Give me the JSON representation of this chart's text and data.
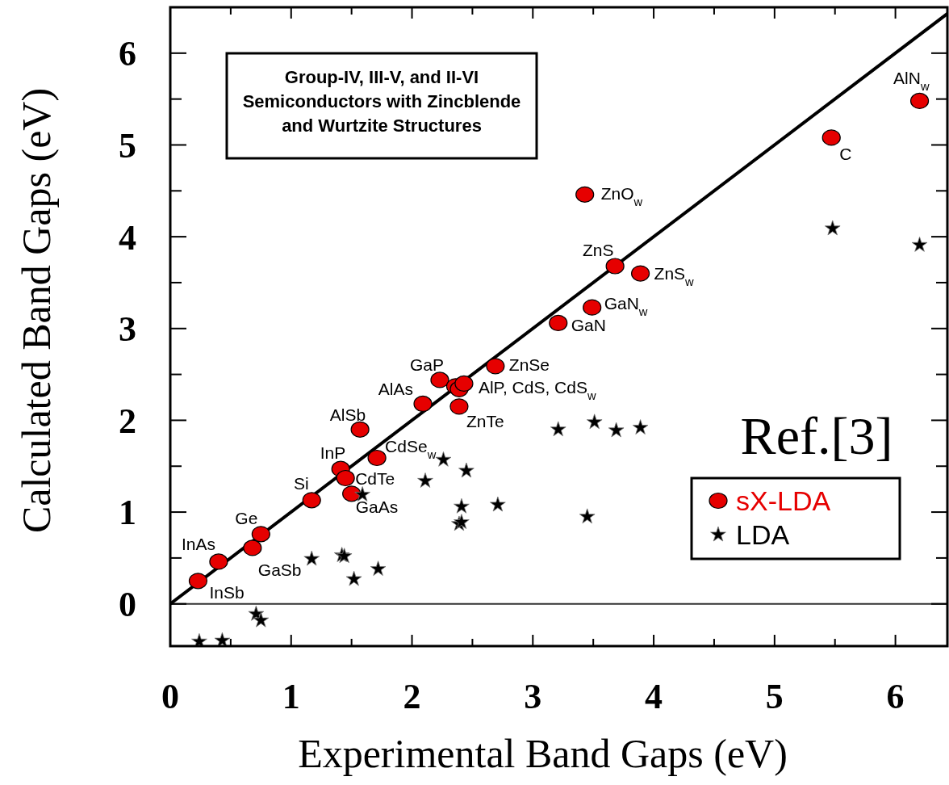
{
  "chart_data": {
    "type": "scatter",
    "title": "Group-IV, III-V, and II-VI Semiconductors with Zincblende and Wurtzite Structures",
    "xlabel": "Experimental Band Gaps (eV)",
    "ylabel": "Calculated  Band Gaps (eV)",
    "xlim": [
      0,
      6.43
    ],
    "ylim": [
      -0.46,
      6.5
    ],
    "xticks": [
      0,
      {
        "value": 0.5,
        "label": null
      },
      1,
      {
        "value": 1.5,
        "label": null
      },
      2,
      {
        "value": 2.5,
        "label": null
      },
      3,
      {
        "value": 3.5,
        "label": null
      },
      4,
      {
        "value": 4.5,
        "label": null
      },
      5,
      {
        "value": 5.5,
        "label": null
      },
      6
    ],
    "yticks": [
      0,
      {
        "value": 0.5,
        "label": null
      },
      1,
      {
        "value": 1.5,
        "label": null
      },
      2,
      {
        "value": 2.5,
        "label": null
      },
      3,
      {
        "value": 3.5,
        "label": null
      },
      4,
      {
        "value": 4.5,
        "label": null
      },
      5,
      {
        "value": 5.5,
        "label": null
      },
      6
    ],
    "legend": "bottom right",
    "grid": false,
    "ref_lines": [
      {
        "axis": "y",
        "value": 0,
        "color": "#333333"
      }
    ],
    "series": [
      {
        "type": "line",
        "color": "#000000",
        "marker": "none",
        "x": [
          0,
          6.43
        ],
        "values": [
          0,
          6.43
        ]
      },
      {
        "name": "sX-LDA",
        "color": "#e60000",
        "marker": "circle",
        "x": [
          0.23,
          0.4,
          0.68,
          0.75,
          1.17,
          1.41,
          1.45,
          1.5,
          1.71,
          1.57,
          2.09,
          2.23,
          2.36,
          2.39,
          2.43,
          2.39,
          2.69,
          3.21,
          3.49,
          3.68,
          3.89,
          3.43,
          5.47,
          6.2
        ],
        "values": [
          0.25,
          0.46,
          0.61,
          0.76,
          1.13,
          1.47,
          1.37,
          1.2,
          1.59,
          1.9,
          2.18,
          2.44,
          2.37,
          2.34,
          2.4,
          2.15,
          2.59,
          3.06,
          3.23,
          3.68,
          3.6,
          4.46,
          5.08,
          5.48
        ]
      },
      {
        "name": "LDA",
        "color": "#000000",
        "marker": "star",
        "x": [
          5.48,
          6.2,
          3.21,
          3.51,
          3.69,
          3.89,
          3.45,
          2.26,
          2.11,
          2.45,
          1.59,
          2.41,
          2.71,
          2.39,
          2.41,
          1.17,
          1.42,
          1.44,
          1.52,
          1.72,
          0.71,
          0.75,
          0.24,
          0.43
        ],
        "values": [
          4.09,
          3.91,
          1.9,
          1.98,
          1.89,
          1.92,
          0.95,
          1.57,
          1.34,
          1.45,
          1.19,
          1.06,
          1.08,
          0.87,
          0.89,
          0.49,
          0.53,
          0.52,
          0.27,
          0.38,
          -0.11,
          -0.18,
          -0.41,
          -0.4
        ]
      }
    ],
    "annotations": [
      {
        "text": "InSb",
        "x": 0.23,
        "y": 0.25
      },
      {
        "text": "InAs",
        "x": 0.4,
        "y": 0.46
      },
      {
        "text": "GaSb",
        "x": 0.68,
        "y": 0.61
      },
      {
        "text": "Ge",
        "x": 0.75,
        "y": 0.76
      },
      {
        "text": "Si",
        "x": 1.17,
        "y": 1.13
      },
      {
        "text": "InP",
        "x": 1.41,
        "y": 1.47
      },
      {
        "text": "CdTe",
        "x": 1.45,
        "y": 1.37
      },
      {
        "text": "GaAs",
        "x": 1.5,
        "y": 1.2
      },
      {
        "text": "CdSe$_{w}$",
        "x": 1.71,
        "y": 1.59
      },
      {
        "text": "AlSb",
        "x": 1.57,
        "y": 1.9
      },
      {
        "text": "AlAs",
        "x": 2.09,
        "y": 2.18
      },
      {
        "text": "GaP",
        "x": 2.23,
        "y": 2.44
      },
      {
        "text": "AlP, CdS, CdS$_{w}$",
        "x": 2.43,
        "y": 2.4
      },
      {
        "text": "ZnTe",
        "x": 2.39,
        "y": 2.15
      },
      {
        "text": "ZnSe",
        "x": 2.69,
        "y": 2.59
      },
      {
        "text": "GaN",
        "x": 3.21,
        "y": 3.06
      },
      {
        "text": "GaN$_{w}$",
        "x": 3.49,
        "y": 3.23
      },
      {
        "text": "ZnS",
        "x": 3.68,
        "y": 3.68
      },
      {
        "text": "ZnS$_{w}$",
        "x": 3.89,
        "y": 3.6
      },
      {
        "text": "ZnO$_{w}$",
        "x": 3.43,
        "y": 4.46
      },
      {
        "text": "C",
        "x": 5.47,
        "y": 5.08
      },
      {
        "text": "AlN$_{w}$",
        "x": 6.2,
        "y": 5.48
      },
      "Ref.[3]"
    ]
  }
}
